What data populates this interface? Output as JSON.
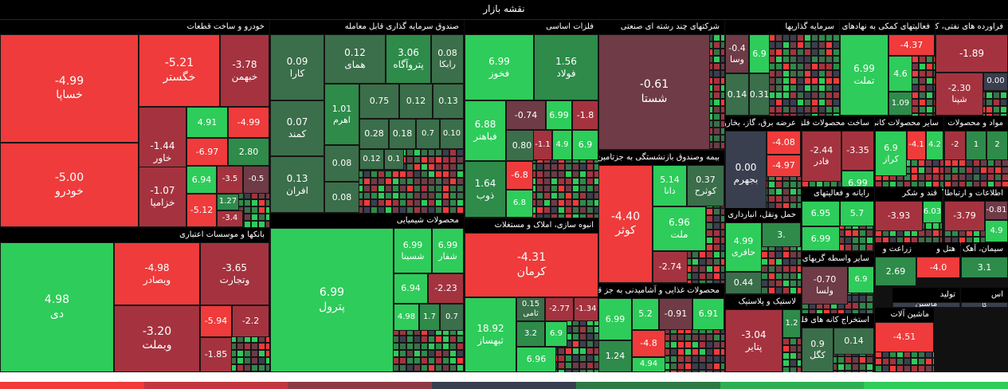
{
  "header": {
    "title": "نقشه بازار"
  },
  "colors": {
    "up_strong": "#2ecc5a",
    "up_mid": "#2e8b4a",
    "up_weak": "#3b6e4a",
    "flat": "#3a3f4f",
    "down_weak": "#6e3b46",
    "down_mid": "#a4333f",
    "down_strong": "#ef3b3b"
  },
  "legend": [
    "#ef3b3b",
    "#c2373f",
    "#8e3a45",
    "#3a3f4f",
    "#2e7a46",
    "#2eae52",
    "#2ecc5a"
  ],
  "chart_data": {
    "type": "treemap",
    "title": "نقشه بازار",
    "sectors": [
      {
        "name": "خودرو و ساخت قطعات",
        "tiles": [
          {
            "symbol": "خساپا",
            "change": "-4.99"
          },
          {
            "symbol": "خودرو",
            "change": "-5.00"
          },
          {
            "symbol": "خگستر",
            "change": "-5.21"
          },
          {
            "symbol": "خبهمن",
            "change": "-3.78"
          },
          {
            "symbol": "خاور",
            "change": "-1.44"
          },
          {
            "symbol": "",
            "change": "4.91"
          },
          {
            "symbol": "",
            "change": "-4.99"
          },
          {
            "symbol": "",
            "change": "-6.97"
          },
          {
            "symbol": "",
            "change": "2.80"
          },
          {
            "symbol": "خزامیا",
            "change": "-1.07"
          },
          {
            "symbol": "",
            "change": "6.94"
          },
          {
            "symbol": "",
            "change": "-3.5"
          },
          {
            "symbol": "",
            "change": "-0.5"
          },
          {
            "symbol": "",
            "change": "-5.12"
          },
          {
            "symbol": "",
            "change": "1.27"
          },
          {
            "symbol": "",
            "change": "-3.4"
          }
        ]
      },
      {
        "name": "صندوق سرمایه گذاری قابل معامله",
        "tiles": [
          {
            "symbol": "کارا",
            "change": "0.09"
          },
          {
            "symbol": "همای",
            "change": "0.12"
          },
          {
            "symbol": "پتروآگاه",
            "change": "3.06"
          },
          {
            "symbol": "رابکا",
            "change": "0.08"
          },
          {
            "symbol": "کمند",
            "change": "0.07"
          },
          {
            "symbol": "اهرم",
            "change": "1.01"
          },
          {
            "symbol": "افران",
            "change": "0.13"
          },
          {
            "symbol": "",
            "change": "0.75"
          },
          {
            "symbol": "",
            "change": "0.12"
          },
          {
            "symbol": "",
            "change": "0.13"
          },
          {
            "symbol": "",
            "change": "0.28"
          },
          {
            "symbol": "",
            "change": "0.18"
          },
          {
            "symbol": "",
            "change": "0.7"
          },
          {
            "symbol": "",
            "change": "0.10"
          },
          {
            "symbol": "",
            "change": "0.08"
          },
          {
            "symbol": "",
            "change": "0.12"
          },
          {
            "symbol": "",
            "change": "0.1"
          },
          {
            "symbol": "",
            "change": "0.08"
          }
        ]
      },
      {
        "name": "فلزات اساسی",
        "tiles": [
          {
            "symbol": "فخوز",
            "change": "6.99"
          },
          {
            "symbol": "فولاد",
            "change": "1.56"
          },
          {
            "symbol": "فباهنر",
            "change": "6.88"
          },
          {
            "symbol": "",
            "change": "-0.74"
          },
          {
            "symbol": "",
            "change": "6.99"
          },
          {
            "symbol": "",
            "change": "-1.8"
          },
          {
            "symbol": "",
            "change": "0.80"
          },
          {
            "symbol": "ذوب",
            "change": "1.64"
          },
          {
            "symbol": "",
            "change": "-6.8"
          },
          {
            "symbol": "",
            "change": "6.8"
          },
          {
            "symbol": "",
            "change": "-1.1"
          },
          {
            "symbol": "",
            "change": "4.9"
          },
          {
            "symbol": "",
            "change": "6.9"
          }
        ]
      },
      {
        "name": "شرکتهای چند رشته ای صنعتی",
        "tiles": [
          {
            "symbol": "شستا",
            "change": "-0.61"
          }
        ]
      },
      {
        "name": "سرمایه گذاریها",
        "tiles": [
          {
            "symbol": "وسا",
            "change": "-0.4"
          },
          {
            "symbol": "",
            "change": "6.9"
          },
          {
            "symbol": "",
            "change": "0.14"
          },
          {
            "symbol": "",
            "change": "0.31"
          }
        ]
      },
      {
        "name": "فعالیتهای کمکی به نهادهای",
        "tiles": [
          {
            "symbol": "تملت",
            "change": "6.99"
          },
          {
            "symbol": "",
            "change": "-4.37"
          },
          {
            "symbol": "",
            "change": "4.6"
          },
          {
            "symbol": "",
            "change": "1.09"
          }
        ]
      },
      {
        "name": "فراورده های نفتی، کک و",
        "tiles": [
          {
            "symbol": "",
            "change": "-1.89"
          },
          {
            "symbol": "شپنا",
            "change": "-2.30"
          },
          {
            "symbol": "",
            "change": "0.00"
          }
        ]
      },
      {
        "name": "بانکها و موسسات اعتباری",
        "tiles": [
          {
            "symbol": "دی",
            "change": "4.98"
          },
          {
            "symbol": "وبصادر",
            "change": "-4.98"
          },
          {
            "symbol": "وتجارت",
            "change": "-3.65"
          },
          {
            "symbol": "وبملت",
            "change": "-3.20"
          },
          {
            "symbol": "",
            "change": "-5.94"
          },
          {
            "symbol": "",
            "change": "-2.2"
          },
          {
            "symbol": "",
            "change": "-1.85"
          }
        ]
      },
      {
        "name": "محصولات شیمیایی",
        "tiles": [
          {
            "symbol": "پترول",
            "change": "6.99"
          },
          {
            "symbol": "شسینا",
            "change": "6.99"
          },
          {
            "symbol": "شفار",
            "change": "6.99"
          },
          {
            "symbol": "",
            "change": "6.94"
          },
          {
            "symbol": "",
            "change": "-2.23"
          },
          {
            "symbol": "",
            "change": "4.98"
          },
          {
            "symbol": "",
            "change": "1.7"
          },
          {
            "symbol": "",
            "change": "0.7"
          }
        ]
      },
      {
        "name": "انبوه سازی، املاک و مستغلات",
        "tiles": [
          {
            "symbol": "کرمان",
            "change": "-4.31"
          },
          {
            "symbol": "ثبهساز",
            "change": "18.92"
          },
          {
            "symbol": "ثامی",
            "change": "0.15"
          },
          {
            "symbol": "",
            "change": "-2.77"
          },
          {
            "symbol": "",
            "change": "-1.34"
          },
          {
            "symbol": "",
            "change": "3.2"
          },
          {
            "symbol": "",
            "change": "6.9"
          },
          {
            "symbol": "",
            "change": "6.96"
          }
        ]
      },
      {
        "name": "بیمه وصندوق بازنشستگی به جزتامین",
        "tiles": [
          {
            "symbol": "کوثر",
            "change": "-4.40"
          },
          {
            "symbol": "دانا",
            "change": "5.14"
          },
          {
            "symbol": "کوثرح",
            "change": "0.37"
          },
          {
            "symbol": "ملت",
            "change": "6.96"
          },
          {
            "symbol": "",
            "change": "-2.74"
          }
        ]
      },
      {
        "name": "محصولات غذایی و آشامیدنی به جز قند و",
        "tiles": [
          {
            "symbol": "",
            "change": "6.99"
          },
          {
            "symbol": "",
            "change": "5.2"
          },
          {
            "symbol": "",
            "change": "-0.91"
          },
          {
            "symbol": "",
            "change": "6.91"
          },
          {
            "symbol": "",
            "change": "1.24"
          },
          {
            "symbol": "",
            "change": "-4.8"
          },
          {
            "symbol": "",
            "change": "4.94"
          }
        ]
      },
      {
        "name": "عرضه برق، گاز، بخاروآب",
        "tiles": [
          {
            "symbol": "بجهرم",
            "change": "0.00"
          },
          {
            "symbol": "",
            "change": "-4.08"
          },
          {
            "symbol": "",
            "change": "-4.97"
          }
        ]
      },
      {
        "name": "ساخت محصولات فلزی",
        "tiles": [
          {
            "symbol": "فادر",
            "change": "-2.44"
          },
          {
            "symbol": "",
            "change": "-3.35"
          },
          {
            "symbol": "",
            "change": "6.99"
          }
        ]
      },
      {
        "name": "سایر محصولات کانی",
        "tiles": [
          {
            "symbol": "کراز",
            "change": "6.9"
          },
          {
            "symbol": "",
            "change": "-4.1"
          },
          {
            "symbol": "",
            "change": "4.2"
          }
        ]
      },
      {
        "name": "مواد و محصولات",
        "tiles": [
          {
            "symbol": "",
            "change": "-2"
          },
          {
            "symbol": "",
            "change": "1"
          },
          {
            "symbol": "",
            "change": "2"
          }
        ]
      },
      {
        "name": "رایانه و فعالیتهای",
        "tiles": [
          {
            "symbol": "",
            "change": "6.95"
          },
          {
            "symbol": "",
            "change": "5.7"
          },
          {
            "symbol": "",
            "change": "6.99"
          }
        ]
      },
      {
        "name": "قند و شکر",
        "tiles": [
          {
            "symbol": "",
            "change": "-3.93"
          },
          {
            "symbol": "",
            "change": "6.03"
          }
        ]
      },
      {
        "name": "اطلاعات و ارتباطات",
        "tiles": [
          {
            "symbol": "",
            "change": "-3.79"
          },
          {
            "symbol": "",
            "change": "-0.81"
          },
          {
            "symbol": "",
            "change": "4.9"
          }
        ]
      },
      {
        "name": "حمل ونقل، انبارداری و",
        "tiles": [
          {
            "symbol": "حافری",
            "change": "4.99"
          },
          {
            "symbol": "",
            "change": "3."
          },
          {
            "symbol": "",
            "change": "0.44"
          }
        ]
      },
      {
        "name": "سایر واسطه گریهای مالی",
        "tiles": [
          {
            "symbol": "ولسا",
            "change": "-0.70"
          },
          {
            "symbol": "",
            "change": "6.9"
          }
        ]
      },
      {
        "name": "هتل و",
        "tiles": [
          {
            "symbol": "",
            "change": "-4.0"
          }
        ]
      },
      {
        "name": "زراعت و",
        "tiles": [
          {
            "symbol": "",
            "change": "2.69"
          }
        ]
      },
      {
        "name": "سیمان، آهک",
        "tiles": [
          {
            "symbol": "",
            "change": "3.1"
          }
        ]
      },
      {
        "name": "لاستیک و پلاستیک",
        "tiles": [
          {
            "symbol": "پتایر",
            "change": "-3.04"
          },
          {
            "symbol": "",
            "change": "1.2"
          }
        ]
      },
      {
        "name": "استخراج کانه های فلزی",
        "tiles": [
          {
            "symbol": "کگل",
            "change": "0.9"
          },
          {
            "symbol": "",
            "change": "0.14"
          }
        ]
      },
      {
        "name": "ماشین آلات",
        "tiles": [
          {
            "symbol": "",
            "change": "-4.51"
          }
        ]
      },
      {
        "name": "تولید",
        "tiles": [
          {
            "symbol": "",
            "change": "ماشین"
          }
        ]
      },
      {
        "name": "اس",
        "tiles": [
          {
            "symbol": "",
            "change": "کا"
          }
        ]
      }
    ]
  }
}
